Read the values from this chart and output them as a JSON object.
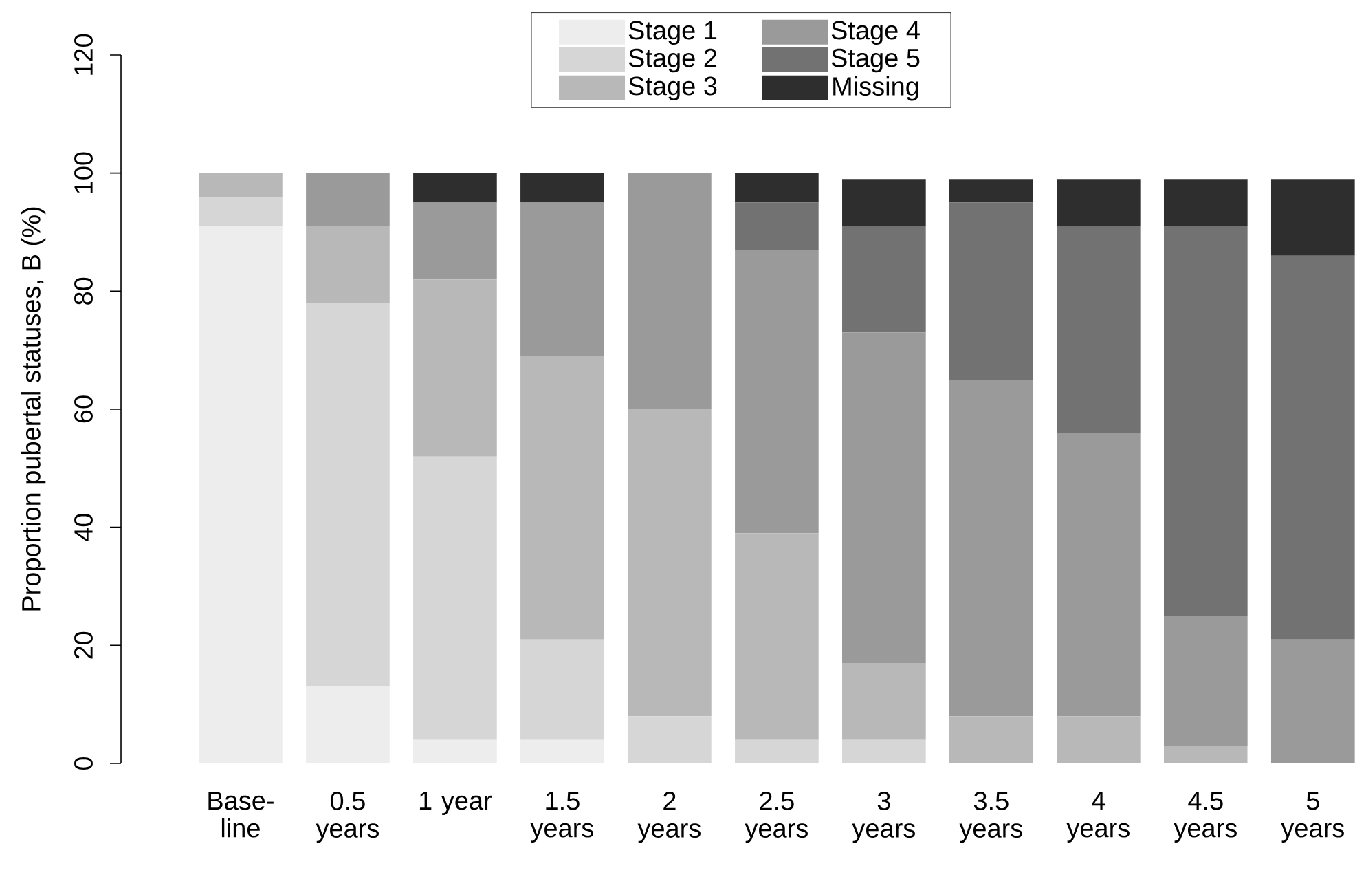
{
  "chart_data": {
    "type": "bar",
    "stacked": true,
    "ylabel": "Proportion pubertal statuses, B (%)",
    "categories": [
      "Base- line",
      "0.5 years",
      "1 year",
      "1.5 years",
      "2 years",
      "2.5 years",
      "3 years",
      "3.5 years",
      "4 years",
      "4.5 years",
      "5 years"
    ],
    "series": [
      {
        "name": "Stage 1",
        "color": "#ededed",
        "values": [
          91,
          13,
          4,
          4,
          0,
          0,
          0,
          0,
          0,
          0,
          0
        ]
      },
      {
        "name": "Stage 2",
        "color": "#d6d6d6",
        "values": [
          5,
          65,
          48,
          17,
          8,
          4,
          4,
          0,
          0,
          0,
          0
        ]
      },
      {
        "name": "Stage 3",
        "color": "#b8b8b8",
        "values": [
          4,
          13,
          30,
          48,
          52,
          35,
          13,
          8,
          8,
          3,
          0
        ]
      },
      {
        "name": "Stage 4",
        "color": "#9a9a9a",
        "values": [
          0,
          9,
          13,
          26,
          40,
          48,
          56,
          57,
          48,
          22,
          21
        ]
      },
      {
        "name": "Stage 5",
        "color": "#727272",
        "values": [
          0,
          0,
          0,
          0,
          0,
          8,
          18,
          30,
          35,
          66,
          65
        ]
      },
      {
        "name": "Missing",
        "color": "#2e2e2e",
        "values": [
          0,
          0,
          5,
          5,
          0,
          5,
          8,
          4,
          8,
          8,
          13
        ]
      }
    ],
    "ylim": [
      0,
      120
    ],
    "yticks": [
      0,
      20,
      40,
      60,
      80,
      100,
      120
    ],
    "grid": false,
    "legend": "top"
  }
}
